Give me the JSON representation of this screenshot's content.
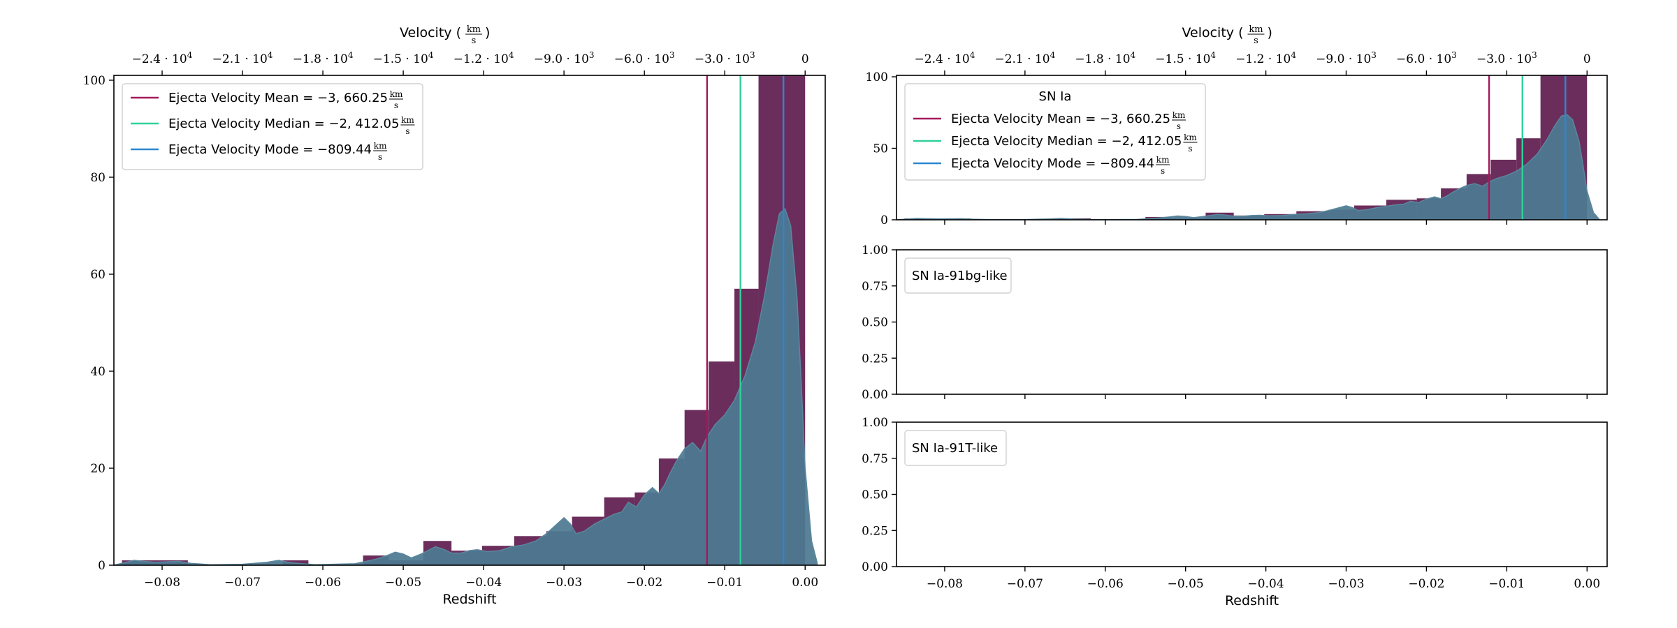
{
  "colors": {
    "hist": "#6b2d5c",
    "kde": "#4e7a92",
    "mean": "#a3195b",
    "median": "#2fd19a",
    "mode": "#2b87d1"
  },
  "chart_data": [
    {
      "id": "main",
      "type": "histogram+kde",
      "xlabel": "Redshift",
      "top_xlabel": "Velocity (km/s)",
      "xlim": [
        -0.086,
        0.0025
      ],
      "ylim": [
        0,
        101
      ],
      "xticks": [
        -0.08,
        -0.07,
        -0.06,
        -0.05,
        -0.04,
        -0.03,
        -0.02,
        -0.01,
        0.0
      ],
      "xtick_labels": [
        "−0.08",
        "−0.07",
        "−0.06",
        "−0.05",
        "−0.04",
        "−0.03",
        "−0.02",
        "−0.01",
        "0.00"
      ],
      "yticks": [
        0,
        20,
        40,
        60,
        80,
        100
      ],
      "ytick_labels": [
        "0",
        "20",
        "40",
        "60",
        "80",
        "100"
      ],
      "top_ticks_z": [
        -0.08,
        -0.07,
        -0.06,
        -0.05,
        -0.04,
        -0.03,
        -0.02,
        -0.01,
        0.0
      ],
      "top_tick_labels": [
        {
          "base": "−2.4 · 10",
          "exp": "4"
        },
        {
          "base": "−2.1 · 10",
          "exp": "4"
        },
        {
          "base": "−1.8 · 10",
          "exp": "4"
        },
        {
          "base": "−1.5 · 10",
          "exp": "4"
        },
        {
          "base": "−1.2 · 10",
          "exp": "4"
        },
        {
          "base": "−9.0 · 10",
          "exp": "3"
        },
        {
          "base": "−6.0 · 10",
          "exp": "3"
        },
        {
          "base": "−3.0 · 10",
          "exp": "3"
        },
        {
          "base": "0",
          "exp": ""
        }
      ],
      "hist_bin_edges": [
        -0.085,
        -0.0768,
        -0.0682,
        -0.065,
        -0.0618,
        -0.055,
        -0.0518,
        -0.0475,
        -0.044,
        -0.0402,
        -0.0362,
        -0.0322,
        -0.029,
        -0.025,
        -0.0212,
        -0.0182,
        -0.015,
        -0.012,
        -0.0088,
        -0.0058,
        -0.0025,
        0.0
      ],
      "hist_counts": [
        1,
        0,
        0,
        1,
        0,
        2,
        1,
        5,
        3,
        4,
        6,
        7,
        10,
        14,
        15,
        22,
        32,
        42,
        57,
        101,
        101
      ],
      "kde_x": [
        -0.086,
        -0.0845,
        -0.0835,
        -0.0822,
        -0.0808,
        -0.0795,
        -0.078,
        -0.0765,
        -0.074,
        -0.07,
        -0.067,
        -0.0655,
        -0.064,
        -0.061,
        -0.056,
        -0.0535,
        -0.052,
        -0.051,
        -0.05,
        -0.049,
        -0.0478,
        -0.046,
        -0.045,
        -0.044,
        -0.0428,
        -0.0418,
        -0.0408,
        -0.0395,
        -0.038,
        -0.0365,
        -0.035,
        -0.0335,
        -0.0322,
        -0.0312,
        -0.03,
        -0.0292,
        -0.0285,
        -0.0275,
        -0.0262,
        -0.025,
        -0.0238,
        -0.0228,
        -0.022,
        -0.021,
        -0.02,
        -0.019,
        -0.0182,
        -0.0175,
        -0.0168,
        -0.016,
        -0.015,
        -0.014,
        -0.013,
        -0.0122,
        -0.0112,
        -0.01,
        -0.0088,
        -0.0075,
        -0.0062,
        -0.005,
        -0.004,
        -0.0032,
        -0.0025,
        -0.0018,
        -0.001,
        -0.0005,
        0.0,
        0.0008,
        0.0015
      ],
      "kde_y": [
        0,
        0.6,
        1.0,
        0.8,
        0.6,
        0.7,
        0.8,
        0.4,
        0.1,
        0.2,
        0.6,
        1.0,
        0.5,
        0.1,
        0.3,
        1.2,
        2.0,
        2.7,
        2.3,
        1.5,
        2.3,
        3.8,
        3.3,
        2.5,
        2.5,
        3.0,
        3.2,
        2.8,
        3.0,
        3.8,
        4.2,
        5.0,
        6.5,
        8.0,
        9.8,
        8.5,
        6.5,
        7.0,
        8.5,
        9.5,
        10.5,
        11.0,
        13.0,
        12.0,
        14.5,
        16.0,
        14.8,
        16.5,
        19.0,
        21.5,
        24.0,
        25.3,
        23.5,
        26.5,
        29.0,
        31.0,
        34.0,
        39.0,
        46.0,
        56.0,
        66.0,
        72.5,
        73.5,
        70.0,
        55.0,
        38.0,
        20.0,
        5.0,
        0.5
      ],
      "vlines": [
        {
          "key": "mean",
          "z": -0.0122
        },
        {
          "key": "median",
          "z": -0.00805
        },
        {
          "key": "mode",
          "z": -0.0027
        }
      ],
      "legend": {
        "title": "",
        "entries": [
          {
            "key": "mean",
            "label": "Ejecta Velocity Mean = −3, 660.25",
            "unit_num": "km",
            "unit_den": "s"
          },
          {
            "key": "median",
            "label": "Ejecta Velocity Median = −2, 412.05",
            "unit_num": "km",
            "unit_den": "s"
          },
          {
            "key": "mode",
            "label": "Ejecta Velocity Mode = −809.44",
            "unit_num": "km",
            "unit_den": "s"
          }
        ]
      }
    },
    {
      "id": "snia",
      "type": "histogram+kde",
      "xlabel": "",
      "top_xlabel": "Velocity (km/s)",
      "xlim": [
        -0.086,
        0.0025
      ],
      "ylim": [
        0,
        101
      ],
      "yticks": [
        0,
        50,
        100
      ],
      "ytick_labels": [
        "0",
        "50",
        "100"
      ],
      "legend": {
        "title": "SN Ia",
        "entries": [
          {
            "key": "mean",
            "label": "Ejecta Velocity Mean = −3, 660.25",
            "unit_num": "km",
            "unit_den": "s"
          },
          {
            "key": "median",
            "label": "Ejecta Velocity Median = −2, 412.05",
            "unit_num": "km",
            "unit_den": "s"
          },
          {
            "key": "mode",
            "label": "Ejecta Velocity Mode = −809.44",
            "unit_num": "km",
            "unit_den": "s"
          }
        ]
      }
    },
    {
      "id": "snia91bg",
      "type": "empty",
      "ylim": [
        0,
        1
      ],
      "yticks": [
        0,
        0.25,
        0.5,
        0.75,
        1.0
      ],
      "ytick_labels": [
        "0.00",
        "0.25",
        "0.50",
        "0.75",
        "1.00"
      ],
      "legend": {
        "title": "SN Ia-91bg-like",
        "entries": []
      }
    },
    {
      "id": "snia91t",
      "type": "empty",
      "xlabel": "Redshift",
      "ylim": [
        0,
        1
      ],
      "yticks": [
        0,
        0.25,
        0.5,
        0.75,
        1.0
      ],
      "ytick_labels": [
        "0.00",
        "0.25",
        "0.50",
        "0.75",
        "1.00"
      ],
      "xticks": [
        -0.08,
        -0.07,
        -0.06,
        -0.05,
        -0.04,
        -0.03,
        -0.02,
        -0.01,
        0.0
      ],
      "xtick_labels": [
        "−0.08",
        "−0.07",
        "−0.06",
        "−0.05",
        "−0.04",
        "−0.03",
        "−0.02",
        "−0.01",
        "0.00"
      ],
      "legend": {
        "title": "SN Ia-91T-like",
        "entries": []
      }
    }
  ]
}
